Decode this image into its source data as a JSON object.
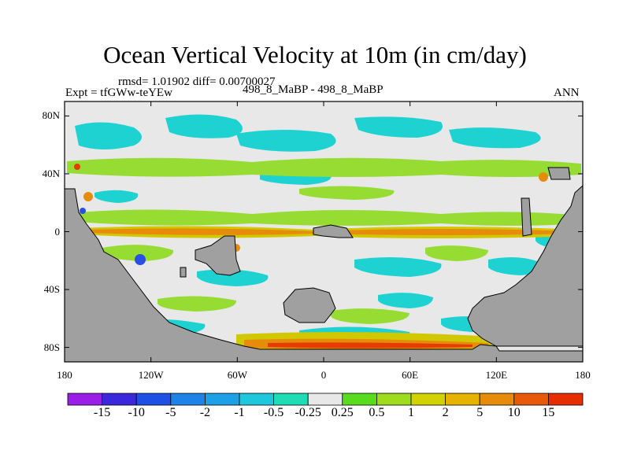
{
  "title": "Ocean Vertical Velocity at 10m (in cm/day)",
  "stats": "rmsd= 1.01902 diff= 0.00700027",
  "expt": "Expt = tfGWw-teYEw",
  "case_label": "498_8_MaBP - 498_8_MaBP",
  "season": "ANN",
  "colors": {
    "land": "#a0a0a0",
    "near_zero": "#e8e8e8",
    "cyan": "#1ed2d2",
    "green": "#96dc32",
    "yellow": "#d2c800",
    "orange": "#e68c0a",
    "red": "#e63c00",
    "blue": "#2850e6"
  },
  "chart_data": {
    "type": "heatmap",
    "title": "Ocean Vertical Velocity at 10m (in cm/day)",
    "x_ticks": [
      "180",
      "120W",
      "60W",
      "0",
      "60E",
      "120E",
      "180"
    ],
    "x_values": [
      -180,
      -120,
      -60,
      0,
      60,
      120,
      180
    ],
    "y_ticks": [
      "80N",
      "40N",
      "0",
      "40S",
      "80S"
    ],
    "y_values": [
      80,
      40,
      0,
      -40,
      -80
    ],
    "xlim": [
      -180,
      180
    ],
    "ylim": [
      -90,
      90
    ],
    "colorbar": {
      "labels": [
        "-15",
        "-10",
        "-5",
        "-2",
        "-1",
        "-0.5",
        "-0.25",
        "0.25",
        "0.5",
        "1",
        "2",
        "5",
        "10",
        "15"
      ],
      "colors": [
        "#9b1ee6",
        "#3c28dc",
        "#1e50e6",
        "#1e82e6",
        "#1ea0e6",
        "#1ec8dc",
        "#1edcb4",
        "#e8e8e8",
        "#5adc1e",
        "#a0dc1e",
        "#d2d200",
        "#e6b400",
        "#e68c0a",
        "#e65a0a",
        "#e62d00"
      ]
    }
  }
}
